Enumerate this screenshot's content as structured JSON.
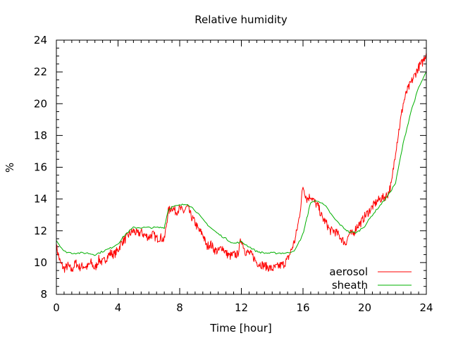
{
  "chart_data": {
    "type": "line",
    "title": "Relative humidity",
    "xlabel": "Time [hour]",
    "ylabel": "%",
    "xlim": [
      0,
      24
    ],
    "ylim": [
      8,
      24
    ],
    "xticks": [
      0,
      4,
      8,
      12,
      16,
      20,
      24
    ],
    "yticks": [
      8,
      10,
      12,
      14,
      16,
      18,
      20,
      22,
      24
    ],
    "xtick_labels": [
      "0",
      "4",
      "8",
      "12",
      "16",
      "20",
      "24"
    ],
    "ytick_labels": [
      "8",
      "10",
      "12",
      "14",
      "16",
      "18",
      "20",
      "22",
      "24"
    ],
    "grid": false,
    "legend_position": "bottom-right",
    "series": [
      {
        "name": "aerosol",
        "color": "#ff0000",
        "x": [
          0,
          0.25,
          0.5,
          0.75,
          1,
          1.25,
          1.5,
          1.75,
          2,
          2.25,
          2.5,
          2.75,
          3,
          3.25,
          3.5,
          3.75,
          4,
          4.25,
          4.5,
          4.75,
          5,
          5.25,
          5.5,
          5.75,
          6,
          6.25,
          6.5,
          6.75,
          7,
          7.25,
          7.5,
          7.75,
          8,
          8.25,
          8.5,
          8.75,
          9,
          9.25,
          9.5,
          9.75,
          10,
          10.25,
          10.5,
          10.75,
          11,
          11.25,
          11.5,
          11.75,
          12,
          12.25,
          12.5,
          12.75,
          13,
          13.25,
          13.5,
          13.75,
          14,
          14.25,
          14.5,
          14.75,
          15,
          15.25,
          15.5,
          15.75,
          16,
          16.25,
          16.5,
          16.75,
          17,
          17.25,
          17.5,
          17.75,
          18,
          18.25,
          18.5,
          18.75,
          19,
          19.25,
          19.5,
          19.75,
          20,
          20.25,
          20.5,
          20.75,
          21,
          21.25,
          21.5,
          21.75,
          22,
          22.25,
          22.5,
          22.75,
          23,
          23.25,
          23.5,
          23.75,
          24
        ],
        "values": [
          11.0,
          10.0,
          9.6,
          9.8,
          9.5,
          10.0,
          9.7,
          9.8,
          9.7,
          10.0,
          9.6,
          10.2,
          10.0,
          10.3,
          10.6,
          10.5,
          10.8,
          11.3,
          11.5,
          11.8,
          12.0,
          11.8,
          11.9,
          11.7,
          11.6,
          11.8,
          11.5,
          11.6,
          11.4,
          13.2,
          13.5,
          13.2,
          13.4,
          13.2,
          13.5,
          12.9,
          12.5,
          12.0,
          11.8,
          11.0,
          11.2,
          10.8,
          10.7,
          11.0,
          10.6,
          10.4,
          10.5,
          10.5,
          11.5,
          10.7,
          10.6,
          10.4,
          10.0,
          9.9,
          9.8,
          9.7,
          9.6,
          9.7,
          9.8,
          9.9,
          10.2,
          10.8,
          11.5,
          12.8,
          14.8,
          14.0,
          14.2,
          13.8,
          13.5,
          12.8,
          12.5,
          12.0,
          12.0,
          11.8,
          11.5,
          11.2,
          11.8,
          11.8,
          12.3,
          12.5,
          12.9,
          13.2,
          13.5,
          13.8,
          14.0,
          14.1,
          14.3,
          15.0,
          17.0,
          18.5,
          20.0,
          20.8,
          21.3,
          21.8,
          22.3,
          22.6,
          23.2
        ]
      },
      {
        "name": "sheath",
        "color": "#00b000",
        "x": [
          0,
          0.5,
          1,
          1.5,
          2,
          2.5,
          3,
          3.5,
          4,
          4.5,
          5,
          5.5,
          6,
          6.5,
          7,
          7.25,
          7.5,
          8,
          8.5,
          9,
          9.5,
          10,
          10.5,
          11,
          11.5,
          12,
          12.5,
          13,
          13.5,
          14,
          14.5,
          15,
          15.5,
          16,
          16.25,
          16.5,
          17,
          17.5,
          18,
          18.5,
          19,
          19.5,
          20,
          20.5,
          21,
          21.5,
          22,
          22.5,
          23,
          23.5,
          24
        ],
        "values": [
          11.4,
          10.7,
          10.6,
          10.6,
          10.6,
          10.5,
          10.7,
          10.9,
          11.2,
          11.8,
          12.2,
          12.2,
          12.2,
          12.2,
          12.2,
          13.3,
          13.5,
          13.6,
          13.7,
          13.3,
          12.7,
          12.2,
          11.8,
          11.5,
          11.2,
          11.3,
          11.0,
          10.7,
          10.6,
          10.6,
          10.6,
          10.6,
          10.8,
          11.8,
          12.8,
          13.8,
          13.9,
          13.5,
          12.8,
          12.3,
          11.9,
          11.9,
          12.3,
          13.0,
          13.6,
          14.2,
          15.0,
          17.5,
          19.5,
          21.0,
          22.0
        ]
      }
    ]
  }
}
